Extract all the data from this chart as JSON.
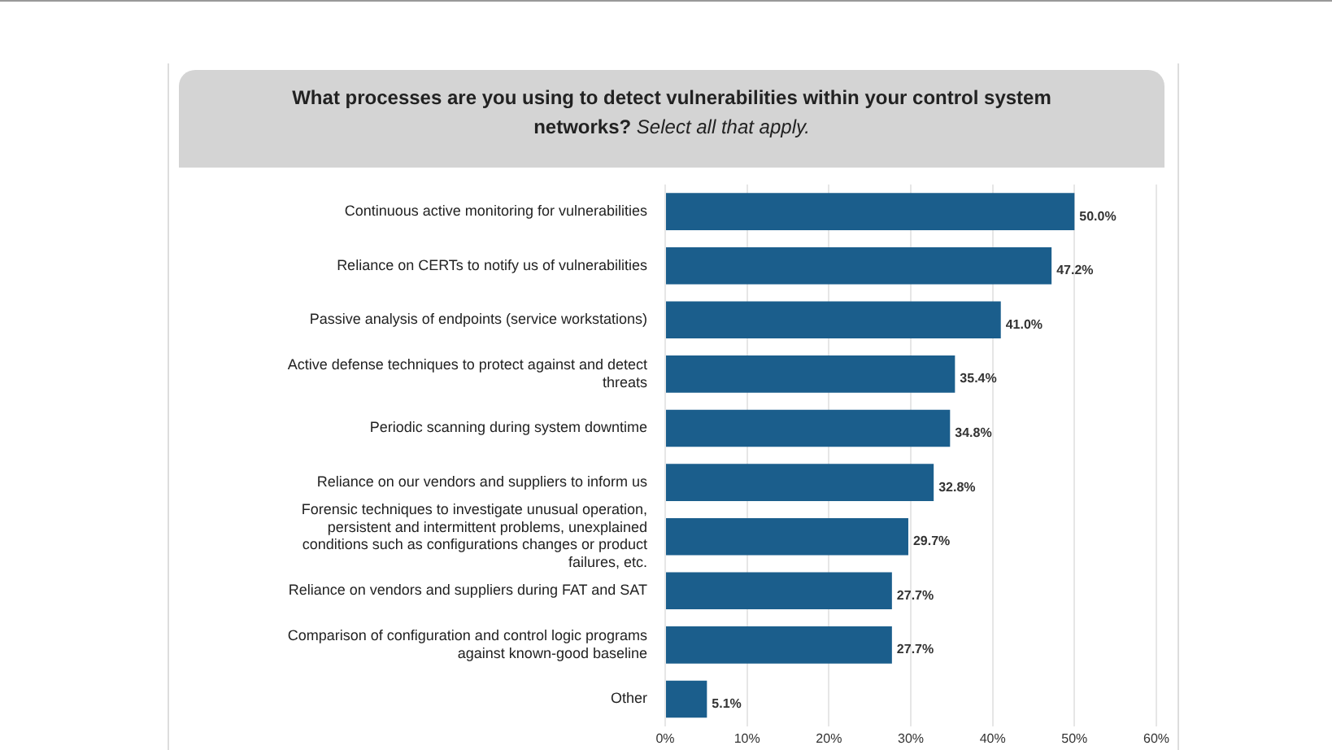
{
  "chart_data": {
    "type": "bar",
    "orientation": "horizontal",
    "title": "What processes are you using to detect vulnerabilities within your control system networks?",
    "subtitle": "Select all that apply.",
    "categories": [
      "Continuous active monitoring for vulnerabilities",
      "Reliance on CERTs to notify us of vulnerabilities",
      "Passive analysis of endpoints (service workstations)",
      "Active defense techniques to protect against and detect threats",
      "Periodic scanning during system downtime",
      "Reliance on our vendors and suppliers to inform us",
      "Forensic techniques to investigate unusual operation, persistent and intermittent problems, unexplained conditions such as configurations changes or product failures, etc.",
      "Reliance on vendors and suppliers during FAT and SAT",
      "Comparison of configuration and control logic programs against known-good baseline",
      "Other"
    ],
    "values": [
      50.0,
      47.2,
      41.0,
      35.4,
      34.8,
      32.8,
      29.7,
      27.7,
      27.7,
      5.1
    ],
    "value_labels": [
      "50.0%",
      "47.2%",
      "41.0%",
      "35.4%",
      "34.8%",
      "32.8%",
      "29.7%",
      "27.7%",
      "27.7%",
      "5.1%"
    ],
    "color": "#1b5e8c",
    "xlim": [
      0,
      60
    ],
    "xticks": [
      {
        "value": 0,
        "label": "0%"
      },
      {
        "value": 10,
        "label": "10%"
      },
      {
        "value": 20,
        "label": "20%"
      },
      {
        "value": 30,
        "label": "30%"
      },
      {
        "value": 40,
        "label": "40%"
      },
      {
        "value": 50,
        "label": "50%"
      },
      {
        "value": 60,
        "label": "60%"
      }
    ],
    "grid": "x",
    "legend": false
  }
}
